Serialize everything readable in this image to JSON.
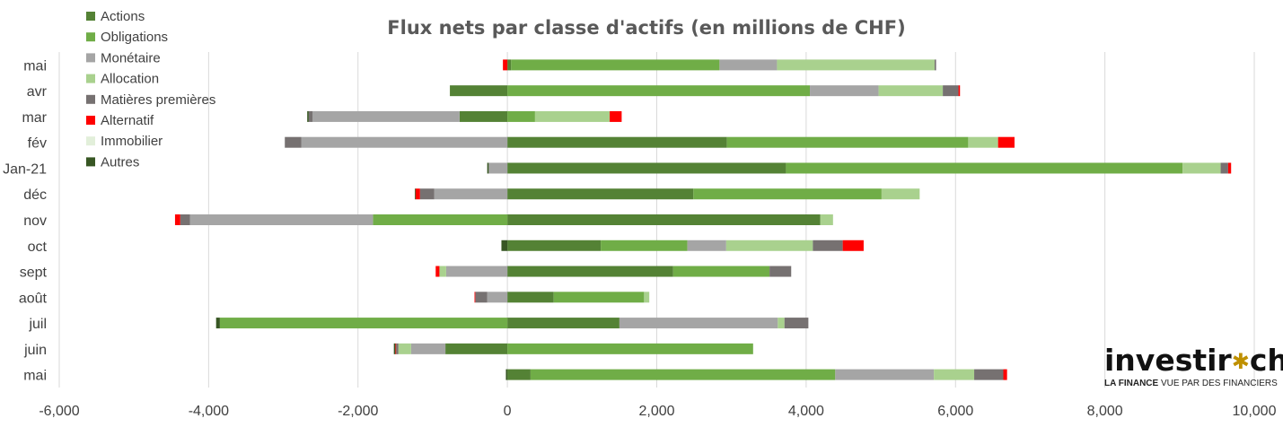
{
  "chart_data": {
    "type": "bar",
    "orientation": "horizontal",
    "stacked": true,
    "title": "Flux nets par classe d'actifs (en millions de CHF)",
    "xlim": [
      -6000,
      10000
    ],
    "x_ticks": [
      "-6,000",
      "-4,000",
      "-2,000",
      "0",
      "2,000",
      "4,000",
      "6,000",
      "8,000",
      "10,000"
    ],
    "x_tick_values": [
      -6000,
      -4000,
      -2000,
      0,
      2000,
      4000,
      6000,
      8000,
      10000
    ],
    "grid": true,
    "legend_position": "top-left",
    "categories": [
      "mai",
      "avr",
      "mar",
      "fév",
      "Jan-21",
      "déc",
      "nov",
      "oct",
      "sept",
      "août",
      "juil",
      "juin",
      "mai"
    ],
    "series": [
      {
        "name": "Actions",
        "color": "#548235",
        "values": [
          50,
          -770,
          -640,
          2940,
          3730,
          2490,
          4190,
          1250,
          2220,
          620,
          1500,
          -830,
          310
        ]
      },
      {
        "name": "Obligations",
        "color": "#70ad47",
        "values": [
          2790,
          4050,
          370,
          3230,
          5310,
          2520,
          -1800,
          1160,
          1290,
          1210,
          -3850,
          3290,
          4080
        ]
      },
      {
        "name": "Monétaire",
        "color": "#a5a5a5",
        "values": [
          770,
          920,
          -1970,
          -2760,
          -250,
          -980,
          -2450,
          520,
          -820,
          -270,
          2120,
          -460,
          1320
        ]
      },
      {
        "name": "Allocation",
        "color": "#a9d18e",
        "values": [
          2110,
          860,
          1000,
          400,
          510,
          510,
          170,
          1160,
          -90,
          70,
          90,
          -170,
          540
        ]
      },
      {
        "name": "Matières premières",
        "color": "#767171",
        "values": [
          20,
          210,
          -50,
          -220,
          100,
          -190,
          -130,
          400,
          290,
          -160,
          320,
          -30,
          390
        ]
      },
      {
        "name": "Alternatif",
        "color": "#ff0000",
        "values": [
          -60,
          20,
          160,
          220,
          40,
          -60,
          -70,
          280,
          -50,
          -10,
          0,
          -10,
          50
        ]
      },
      {
        "name": "Immobilier",
        "color": "#e2efda",
        "values": [
          0,
          0,
          0,
          0,
          0,
          0,
          0,
          0,
          0,
          0,
          0,
          0,
          0
        ]
      },
      {
        "name": "Autres",
        "color": "#375623",
        "values": [
          0,
          0,
          -20,
          0,
          -20,
          -10,
          0,
          -80,
          0,
          0,
          -50,
          -20,
          -20
        ]
      }
    ]
  },
  "logo": {
    "name": "investir",
    "suffix": "ch",
    "tagline_part1": "LA FINANCE",
    "tagline_part2": "VUE PAR DES FINANCIERS"
  }
}
